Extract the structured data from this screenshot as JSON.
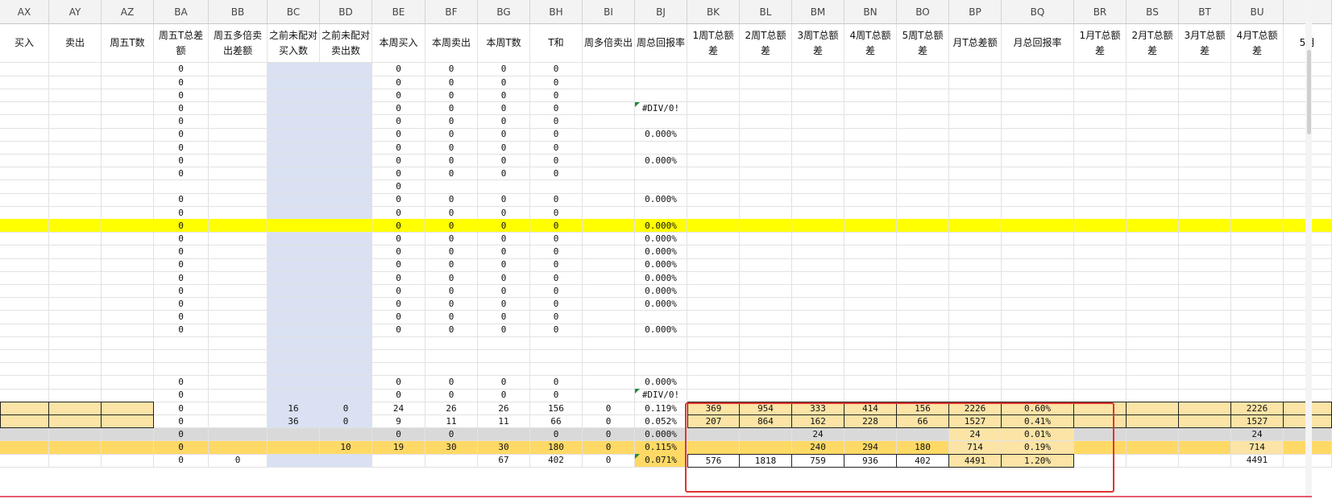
{
  "colors": {
    "yellow": "#ffff00",
    "orange": "#ffd966",
    "tan": "#fce4a6",
    "gray": "#d9d9d9",
    "blue": "#d9e1f2",
    "highlight_border": "#e0332f"
  },
  "columns": [
    {
      "letter": "AX",
      "header": "买入",
      "w": 61
    },
    {
      "letter": "AY",
      "header": "卖出",
      "w": 65
    },
    {
      "letter": "AZ",
      "header": "周五T数",
      "w": 65
    },
    {
      "letter": "BA",
      "header": "周五T总差额",
      "w": 68
    },
    {
      "letter": "BB",
      "header": "周五多倍卖出差额",
      "w": 73
    },
    {
      "letter": "BC",
      "header": "之前未配对买入数",
      "w": 65
    },
    {
      "letter": "BD",
      "header": "之前未配对卖出数",
      "w": 65
    },
    {
      "letter": "BE",
      "header": "本周买入",
      "w": 66
    },
    {
      "letter": "BF",
      "header": "本周卖出",
      "w": 65
    },
    {
      "letter": "BG",
      "header": "本周T数",
      "w": 65
    },
    {
      "letter": "BH",
      "header": "T和",
      "w": 65
    },
    {
      "letter": "BI",
      "header": "周多倍卖出",
      "w": 65
    },
    {
      "letter": "BJ",
      "header": "周总回报率",
      "w": 65
    },
    {
      "letter": "BK",
      "header": "1周T总额差",
      "w": 65
    },
    {
      "letter": "BL",
      "header": "2周T总额差",
      "w": 65
    },
    {
      "letter": "BM",
      "header": "3周T总额差",
      "w": 65
    },
    {
      "letter": "BN",
      "header": "4周T总额差",
      "w": 65
    },
    {
      "letter": "BO",
      "header": "5周T总额差",
      "w": 65
    },
    {
      "letter": "BP",
      "header": "月T总差额",
      "w": 65
    },
    {
      "letter": "BQ",
      "header": "月总回报率",
      "w": 90
    },
    {
      "letter": "BR",
      "header": "1月T总额差",
      "w": 65
    },
    {
      "letter": "BS",
      "header": "2月T总额差",
      "w": 65
    },
    {
      "letter": "BT",
      "header": "3月T总额差",
      "w": 65
    },
    {
      "letter": "BU",
      "header": "4月T总额差",
      "w": 65
    },
    {
      "letter": "",
      "header": "5月",
      "w": 60
    }
  ],
  "rows": [
    {
      "cells": {
        "BA": "0",
        "BE": "0",
        "BF": "0",
        "BG": "0",
        "BH": "0"
      }
    },
    {
      "cells": {
        "BA": "0",
        "BE": "0",
        "BF": "0",
        "BG": "0",
        "BH": "0"
      }
    },
    {
      "cells": {
        "BA": "0",
        "BE": "0",
        "BF": "0",
        "BG": "0",
        "BH": "0"
      }
    },
    {
      "cells": {
        "BA": "0",
        "BE": "0",
        "BF": "0",
        "BG": "0",
        "BH": "0",
        "BJ": "#DIV/0!"
      },
      "err": true
    },
    {
      "cells": {
        "BA": "0",
        "BE": "0",
        "BF": "0",
        "BG": "0",
        "BH": "0"
      }
    },
    {
      "cells": {
        "BA": "0",
        "BE": "0",
        "BF": "0",
        "BG": "0",
        "BH": "0",
        "BJ": "0.000%"
      }
    },
    {
      "cells": {
        "BA": "0",
        "BE": "0",
        "BF": "0",
        "BG": "0",
        "BH": "0"
      }
    },
    {
      "cells": {
        "BA": "0",
        "BE": "0",
        "BF": "0",
        "BG": "0",
        "BH": "0",
        "BJ": "0.000%"
      }
    },
    {
      "cells": {
        "BA": "0",
        "BE": "0",
        "BF": "0",
        "BG": "0",
        "BH": "0"
      }
    },
    {
      "cells": {
        "BE": "0"
      }
    },
    {
      "cells": {
        "BA": "0",
        "BE": "0",
        "BF": "0",
        "BG": "0",
        "BH": "0",
        "BJ": "0.000%"
      }
    },
    {
      "cells": {
        "BA": "0",
        "BE": "0",
        "BF": "0",
        "BG": "0",
        "BH": "0"
      }
    },
    {
      "cells": {
        "BA": "0",
        "BE": "0",
        "BF": "0",
        "BG": "0",
        "BH": "0",
        "BJ": "0.000%"
      },
      "fill": "yellow"
    },
    {
      "cells": {
        "BA": "0",
        "BE": "0",
        "BF": "0",
        "BG": "0",
        "BH": "0",
        "BJ": "0.000%"
      }
    },
    {
      "cells": {
        "BA": "0",
        "BE": "0",
        "BF": "0",
        "BG": "0",
        "BH": "0",
        "BJ": "0.000%"
      }
    },
    {
      "cells": {
        "BA": "0",
        "BE": "0",
        "BF": "0",
        "BG": "0",
        "BH": "0",
        "BJ": "0.000%"
      }
    },
    {
      "cells": {
        "BA": "0",
        "BE": "0",
        "BF": "0",
        "BG": "0",
        "BH": "0",
        "BJ": "0.000%"
      }
    },
    {
      "cells": {
        "BA": "0",
        "BE": "0",
        "BF": "0",
        "BG": "0",
        "BH": "0",
        "BJ": "0.000%"
      }
    },
    {
      "cells": {
        "BA": "0",
        "BE": "0",
        "BF": "0",
        "BG": "0",
        "BH": "0",
        "BJ": "0.000%"
      }
    },
    {
      "cells": {
        "BA": "0",
        "BE": "0",
        "BF": "0",
        "BG": "0",
        "BH": "0"
      }
    },
    {
      "cells": {
        "BA": "0",
        "BE": "0",
        "BF": "0",
        "BG": "0",
        "BH": "0",
        "BJ": "0.000%"
      }
    },
    {
      "cells": {}
    },
    {
      "cells": {}
    },
    {
      "cells": {}
    },
    {
      "cells": {
        "BA": "0",
        "BE": "0",
        "BF": "0",
        "BG": "0",
        "BH": "0",
        "BJ": "0.000%"
      }
    },
    {
      "cells": {
        "BA": "0",
        "BE": "0",
        "BF": "0",
        "BG": "0",
        "BH": "0",
        "BJ": "#DIV/0!"
      },
      "err": true
    },
    {
      "cells": {
        "BA": "0",
        "BC": "16",
        "BD": "0",
        "BE": "24",
        "BF": "26",
        "BG": "26",
        "BH": "156",
        "BI": "0",
        "BJ": "0.119%",
        "BK": "369",
        "BL": "954",
        "BM": "333",
        "BN": "414",
        "BO": "156",
        "BP": "2226",
        "BQ": "0.60%",
        "BU": "2226"
      },
      "fill": "tan"
    },
    {
      "cells": {
        "BA": "0",
        "BC": "36",
        "BD": "0",
        "BE": "9",
        "BF": "11",
        "BG": "11",
        "BH": "66",
        "BI": "0",
        "BJ": "0.052%",
        "BK": "207",
        "BL": "864",
        "BM": "162",
        "BN": "228",
        "BO": "66",
        "BP": "1527",
        "BQ": "0.41%",
        "BU": "1527"
      },
      "fill": "tan"
    },
    {
      "cells": {
        "BA": "0",
        "BE": "0",
        "BF": "0",
        "BH": "0",
        "BI": "0",
        "BJ": "0.000%",
        "BM": "24",
        "BP": "24",
        "BQ": "0.01%",
        "BU": "24"
      },
      "fill": "gray"
    },
    {
      "cells": {
        "BA": "0",
        "BD": "10",
        "BE": "19",
        "BF": "30",
        "BG": "30",
        "BH": "180",
        "BI": "0",
        "BJ": "0.115%",
        "BM": "240",
        "BN": "294",
        "BO": "180",
        "BP": "714",
        "BQ": "0.19%",
        "BU": "714"
      },
      "fill": "orange"
    },
    {
      "cells": {
        "BA": "0",
        "BB": "0",
        "BG": "67",
        "BH": "402",
        "BI": "0",
        "BJ": "0.071%",
        "BK": "576",
        "BL": "1818",
        "BM": "759",
        "BN": "936",
        "BO": "402",
        "BP": "4491",
        "BQ": "1.20%",
        "BU": "4491"
      },
      "err": true
    }
  ]
}
